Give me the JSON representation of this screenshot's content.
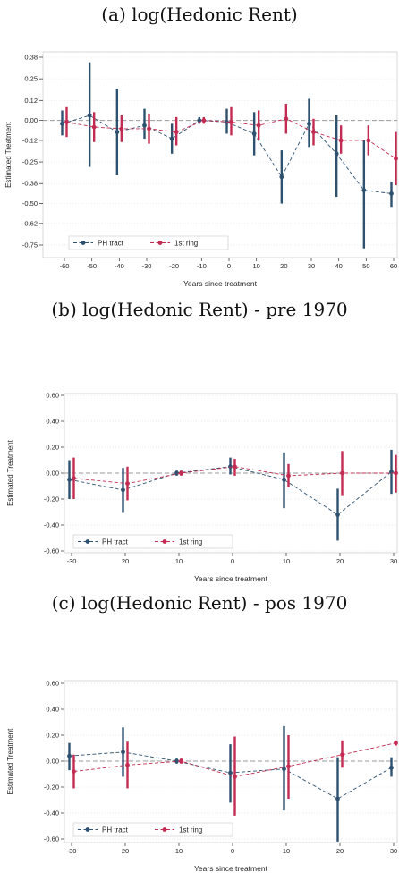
{
  "colors": {
    "ph": "#2e5170",
    "ring": "#c42b52",
    "zero": "#9a9a9a",
    "grid": "#e4e4e4"
  },
  "chart_data": [
    {
      "type": "scatter",
      "title": "(a) log(Hedonic Rent)",
      "xlabel": "Years since treatment",
      "ylabel": "Estimated Treatment",
      "x_ticks": [
        "-60",
        "-50",
        "-40",
        "-30",
        "-20",
        "-10",
        "0",
        "10",
        "20",
        "30",
        "40",
        "50",
        "60"
      ],
      "y_ticks": [
        "0.38",
        "0.25",
        "0.12",
        "0.00",
        "-0.12",
        "-0.25",
        "-0.38",
        "-0.50",
        "-0.62",
        "-0.75"
      ],
      "ylim": [
        -0.8,
        0.4
      ],
      "legend": [
        "PH tract",
        "1st ring"
      ],
      "series": [
        {
          "name": "PH tract",
          "x": [
            -60,
            -50,
            -40,
            -30,
            -20,
            -10,
            0,
            10,
            20,
            30,
            40,
            50,
            60
          ],
          "y": [
            -0.02,
            0.03,
            -0.07,
            -0.03,
            -0.11,
            0.0,
            -0.01,
            -0.08,
            -0.34,
            -0.02,
            -0.2,
            -0.42,
            -0.44
          ],
          "lo": [
            -0.09,
            -0.28,
            -0.33,
            -0.11,
            -0.2,
            -0.02,
            -0.08,
            -0.21,
            -0.5,
            -0.16,
            -0.46,
            -0.77,
            -0.52
          ],
          "hi": [
            0.06,
            0.35,
            0.19,
            0.07,
            -0.02,
            0.02,
            0.07,
            0.05,
            -0.18,
            0.13,
            0.03,
            -0.12,
            -0.37
          ]
        },
        {
          "name": "1st ring",
          "x": [
            -60,
            -50,
            -40,
            -30,
            -20,
            -10,
            0,
            10,
            20,
            30,
            40,
            50,
            60
          ],
          "y": [
            -0.01,
            -0.04,
            -0.05,
            -0.05,
            -0.07,
            0.0,
            -0.01,
            -0.03,
            0.01,
            -0.07,
            -0.12,
            -0.12,
            -0.23
          ],
          "lo": [
            -0.1,
            -0.13,
            -0.13,
            -0.14,
            -0.15,
            -0.02,
            -0.09,
            -0.12,
            -0.08,
            -0.15,
            -0.2,
            -0.21,
            -0.39
          ],
          "hi": [
            0.08,
            0.05,
            0.03,
            0.04,
            0.02,
            0.02,
            0.08,
            0.06,
            0.1,
            0.01,
            -0.03,
            -0.03,
            -0.07
          ]
        }
      ]
    },
    {
      "type": "scatter",
      "title": "(b) log(Hedonic Rent) - pre 1970",
      "xlabel": "Years since treatment",
      "ylabel": "Estimated Treatment",
      "x_ticks": [
        "-30",
        "20",
        "10",
        "0",
        "10",
        "20",
        "30"
      ],
      "y_ticks": [
        "0.60",
        "0.40",
        "0.20",
        "0.00",
        "-0.20",
        "-0.40",
        "-0.60"
      ],
      "ylim": [
        -0.62,
        0.62
      ],
      "legend": [
        "PH tract",
        "1st ring"
      ],
      "series": [
        {
          "name": "PH tract",
          "x": [
            -30,
            -20,
            -10,
            0,
            10,
            20,
            30
          ],
          "y": [
            -0.05,
            -0.13,
            0.0,
            0.05,
            -0.05,
            -0.32,
            0.01
          ],
          "lo": [
            -0.2,
            -0.3,
            -0.02,
            -0.01,
            -0.27,
            -0.52,
            -0.16
          ],
          "hi": [
            0.1,
            0.04,
            0.02,
            0.12,
            0.16,
            -0.12,
            0.18
          ]
        },
        {
          "name": "1st ring",
          "x": [
            -30,
            -20,
            -10,
            0,
            10,
            20,
            30
          ],
          "y": [
            -0.04,
            -0.08,
            0.0,
            0.05,
            -0.02,
            0.0,
            0.0
          ],
          "lo": [
            -0.2,
            -0.21,
            -0.02,
            -0.02,
            -0.11,
            -0.17,
            -0.15
          ],
          "hi": [
            0.12,
            0.05,
            0.02,
            0.11,
            0.07,
            0.17,
            0.14
          ]
        }
      ]
    },
    {
      "type": "scatter",
      "title": "(c) log(Hedonic Rent) - pos 1970",
      "xlabel": "Years since treatment",
      "ylabel": "Estimated Treatment",
      "x_ticks": [
        "-30",
        "20",
        "10",
        "0",
        "10",
        "20",
        "30"
      ],
      "y_ticks": [
        "0.60",
        "0.40",
        "0.20",
        "0.00",
        "-0.20",
        "-0.40",
        "-0.60"
      ],
      "ylim": [
        -0.62,
        0.62
      ],
      "legend": [
        "PH tract",
        "1st ring"
      ],
      "series": [
        {
          "name": "PH tract",
          "x": [
            -30,
            -20,
            -10,
            0,
            10,
            20,
            30
          ],
          "y": [
            0.04,
            0.07,
            0.0,
            -0.09,
            -0.06,
            -0.29,
            -0.05
          ],
          "lo": [
            -0.07,
            -0.12,
            -0.02,
            -0.32,
            -0.38,
            -0.62,
            -0.12
          ],
          "hi": [
            0.14,
            0.26,
            0.02,
            0.13,
            0.27,
            0.03,
            0.03
          ]
        },
        {
          "name": "1st ring",
          "x": [
            -30,
            -20,
            -10,
            0,
            10,
            20,
            30
          ],
          "y": [
            -0.08,
            -0.03,
            0.0,
            -0.12,
            -0.04,
            0.05,
            0.14
          ],
          "lo": [
            -0.21,
            -0.21,
            -0.02,
            -0.42,
            -0.29,
            -0.05,
            0.12
          ],
          "hi": [
            0.05,
            0.15,
            0.02,
            0.19,
            0.2,
            0.16,
            0.16
          ]
        }
      ]
    }
  ]
}
